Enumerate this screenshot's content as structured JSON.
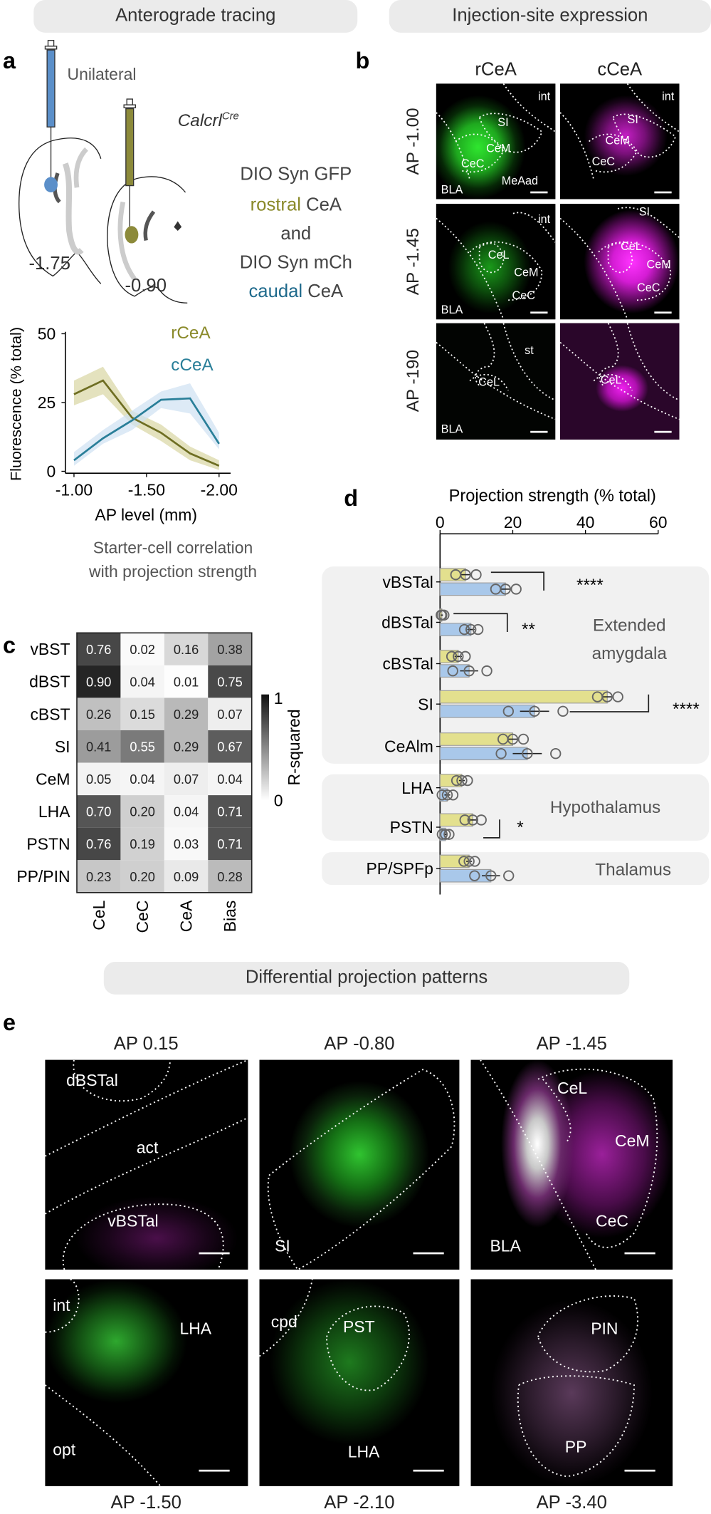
{
  "headers": {
    "anterograde": "Anterograde tracing",
    "injection": "Injection-site expression",
    "differential": "Differential projection patterns"
  },
  "panel_labels": {
    "a": "a",
    "b": "b",
    "c": "c",
    "d": "d",
    "e": "e"
  },
  "panel_a": {
    "unilateral": "Unilateral",
    "genotype": "Calcrl",
    "genotype_sup": "Cre",
    "ap_caudal": "-1.75",
    "ap_rostral": "-0.90",
    "line1": "DIO Syn GFP",
    "line2_colored": "rostral",
    "line2_rest": " CeA",
    "line3": "and",
    "line4": "DIO Syn mCh",
    "line5_colored": "caudal",
    "line5_rest": " CeA",
    "colors": {
      "rostral": "#8a8a2a",
      "caudal": "#1f6a8c",
      "syringe_caudal": "#5b8fc9",
      "syringe_rostral": "#8c8a3a"
    }
  },
  "panel_b": {
    "columns": [
      "rCeA",
      "cCeA"
    ],
    "rows": [
      "AP -1.00",
      "AP -1.45",
      "AP -190"
    ],
    "labels": {
      "r1c1": [
        "int",
        "SI",
        "CeM",
        "CeC",
        "MeAad",
        "BLA"
      ],
      "r1c2": [
        "int",
        "SI",
        "CeM",
        "CeC"
      ],
      "r2c1": [
        "int",
        "CeL",
        "CeM",
        "CeC",
        "BLA"
      ],
      "r2c2": [
        "SI",
        "CeL",
        "CeM",
        "CeC"
      ],
      "r3c1": [
        "st",
        "CeL",
        "BLA"
      ],
      "r3c2": [
        "CeL"
      ]
    }
  },
  "panel_c": {
    "title_line1": "Starter-cell correlation",
    "title_line2": "with projection strength",
    "colorbar_max": "1",
    "colorbar_min": "0",
    "colorbar_label": "R-squared"
  },
  "panel_d": {
    "groups": {
      "extended_line1": "Extended",
      "extended_line2": "amygdala",
      "hypothalamus": "Hypothalamus",
      "thalamus": "Thalamus"
    },
    "significance": [
      "****",
      "**",
      "****",
      "*"
    ]
  },
  "panel_e": {
    "top_titles": [
      "AP 0.15",
      "AP -0.80",
      "AP -1.45"
    ],
    "bottom_titles": [
      "AP -1.50",
      "AP -2.10",
      "AP -3.40"
    ],
    "labels": {
      "r1c1": [
        "dBSTal",
        "act",
        "vBSTal"
      ],
      "r1c2": [
        "SI"
      ],
      "r1c3": [
        "CeL",
        "CeM",
        "CeC",
        "BLA"
      ],
      "r2c1": [
        "int",
        "LHA",
        "opt"
      ],
      "r2c2": [
        "cpd",
        "PST",
        "LHA"
      ],
      "r2c3": [
        "PIN",
        "PP"
      ]
    }
  },
  "chart_data": [
    {
      "type": "line",
      "xlabel": "AP level (mm)",
      "ylabel": "Fluorescence (% total)",
      "xlim": [
        -1.0,
        -2.0
      ],
      "ylim": [
        0,
        50
      ],
      "xticks": [
        "-1.00",
        "-1.50",
        "-2.00"
      ],
      "yticks": [
        "0",
        "25",
        "50"
      ],
      "x": [
        -1.0,
        -1.2,
        -1.4,
        -1.6,
        -1.8,
        -2.0
      ],
      "series": [
        {
          "name": "rCeA",
          "color": "#6e6e22",
          "band_color": "#d9d6a3",
          "values": [
            28,
            33,
            19.5,
            14,
            6.5,
            2
          ],
          "upper": [
            33,
            38,
            22,
            17,
            9,
            4
          ],
          "lower": [
            24,
            28,
            17,
            11,
            4,
            0.5
          ]
        },
        {
          "name": "cCeA",
          "color": "#2a7f99",
          "band_color": "#cfe1f2",
          "values": [
            4,
            12,
            18.5,
            26,
            26.5,
            10
          ],
          "upper": [
            7,
            15,
            22,
            29,
            32,
            14
          ],
          "lower": [
            2,
            10,
            15,
            23,
            21,
            8
          ]
        }
      ],
      "legend": "top-right",
      "grid": false
    },
    {
      "type": "heatmap",
      "rows": [
        "vBST",
        "dBST",
        "cBST",
        "SI",
        "CeM",
        "LHA",
        "PSTN",
        "PP/PIN"
      ],
      "columns": [
        "CeL",
        "CeC",
        "CeA",
        "Bias"
      ],
      "values": [
        [
          0.76,
          0.02,
          0.16,
          0.38
        ],
        [
          0.9,
          0.04,
          0.01,
          0.75
        ],
        [
          0.26,
          0.15,
          0.29,
          0.07
        ],
        [
          0.41,
          0.55,
          0.29,
          0.67
        ],
        [
          0.05,
          0.04,
          0.07,
          0.04
        ],
        [
          0.7,
          0.2,
          0.04,
          0.71
        ],
        [
          0.76,
          0.19,
          0.03,
          0.71
        ],
        [
          0.23,
          0.2,
          0.09,
          0.28
        ]
      ],
      "labels": [
        [
          "0.76",
          "0.02",
          "0.16",
          "0.38"
        ],
        [
          "0.90",
          "0.04",
          "0.01",
          "0.75"
        ],
        [
          "0.26",
          "0.15",
          "0.29",
          "0.07"
        ],
        [
          "0.41",
          "0.55",
          "0.29",
          "0.67"
        ],
        [
          "0.05",
          "0.04",
          "0.07",
          "0.04"
        ],
        [
          "0.70",
          "0.20",
          "0.04",
          "0.71"
        ],
        [
          "0.76",
          "0.19",
          "0.03",
          "0.71"
        ],
        [
          "0.23",
          "0.20",
          "0.09",
          "0.28"
        ]
      ],
      "colorbar_range": [
        0,
        1
      ],
      "colormap": "white-to-black"
    },
    {
      "type": "bar",
      "orientation": "horizontal",
      "title": "Projection strength (% total)",
      "xlim": [
        0,
        60
      ],
      "xticks": [
        "0",
        "20",
        "40",
        "60"
      ],
      "categories": [
        "vBSTal",
        "dBSTal",
        "cBSTal",
        "SI",
        "CeAlm",
        "LHA",
        "PSTN",
        "PP/SPFp"
      ],
      "series": [
        {
          "color": "#e3e08e",
          "values": [
            7,
            0.5,
            5,
            46,
            20,
            6,
            9,
            8
          ],
          "err": [
            1.5,
            0.3,
            1,
            1.5,
            1.5,
            0.8,
            1.2,
            0.8
          ]
        },
        {
          "color": "#a9c8ea",
          "values": [
            18,
            8.5,
            8,
            26,
            24,
            2,
            1.5,
            14
          ],
          "err": [
            1.5,
            1,
            2.5,
            4,
            4,
            0.8,
            0.5,
            2.5
          ]
        }
      ]
    }
  ]
}
